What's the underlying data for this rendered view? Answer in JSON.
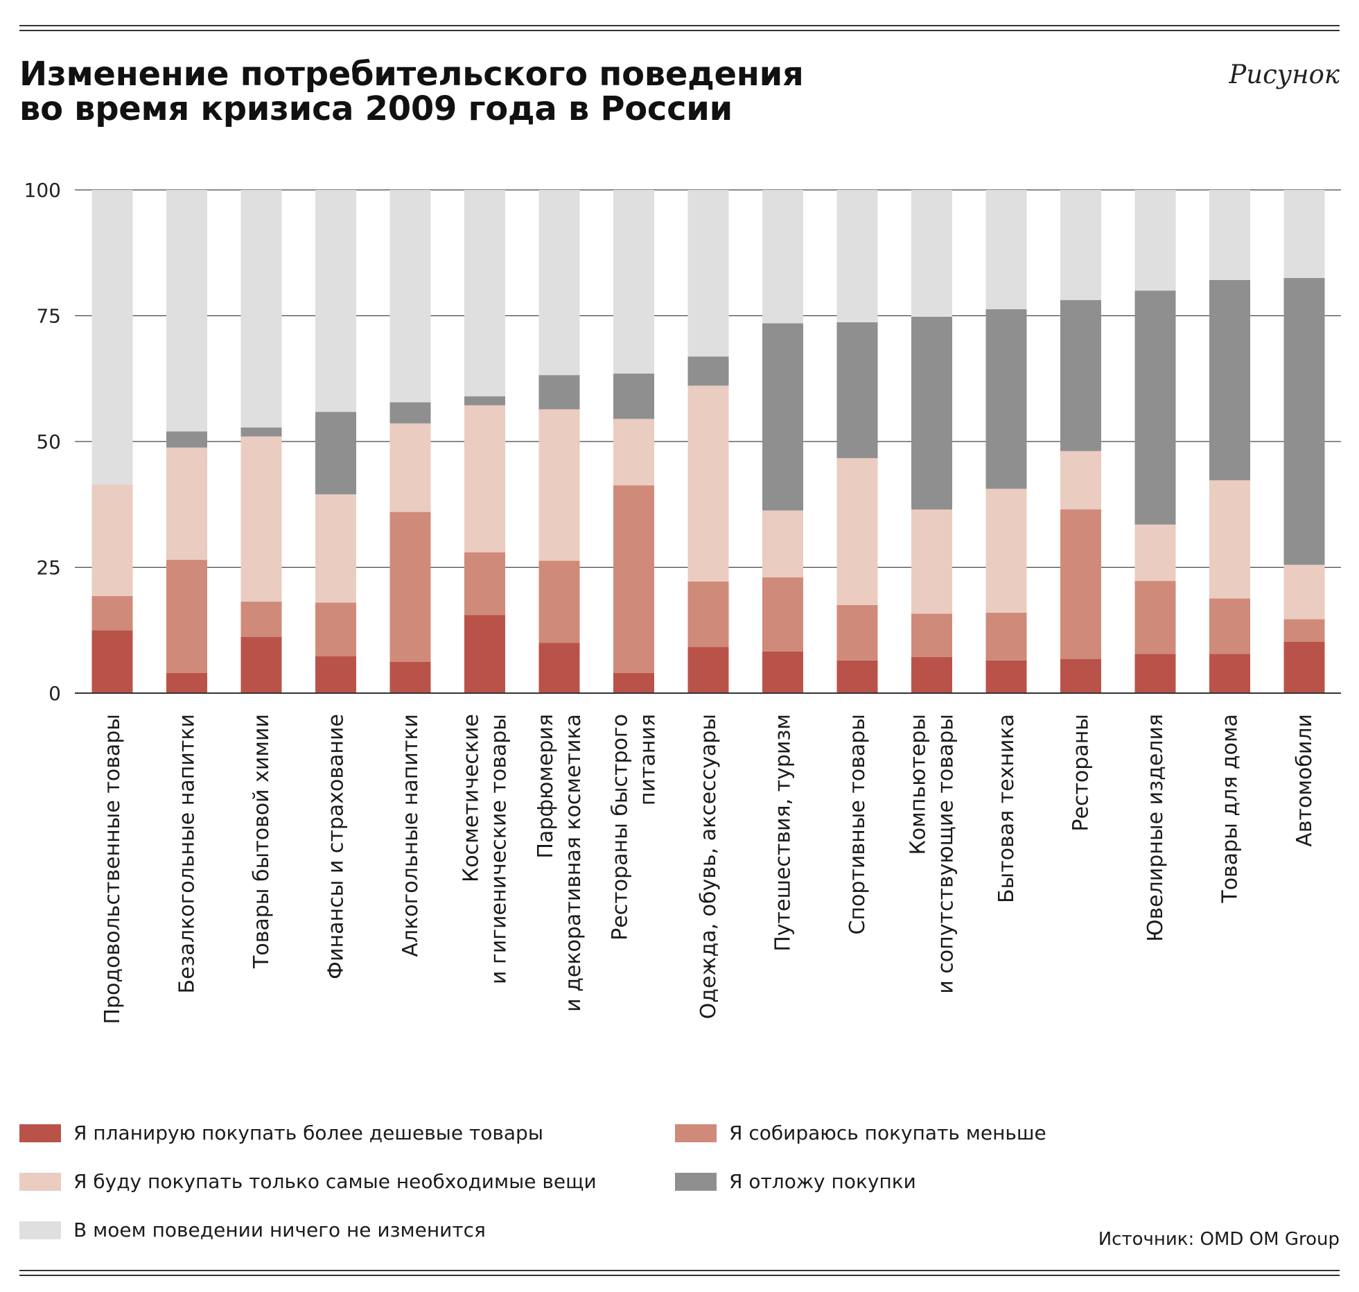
{
  "header": {
    "title_line1": "Изменение потребительского поведения",
    "title_line2": "во время кризиса 2009 года в России",
    "figure_label": "Рисунок"
  },
  "legend": [
    {
      "label": "Я планирую покупать более дешевые товары",
      "color": "#b95349"
    },
    {
      "label": "Я собираюсь покупать меньше",
      "color": "#d08a7a"
    },
    {
      "label": "Я буду покупать только самые необходимые вещи",
      "color": "#ebccc0"
    },
    {
      "label": "Я отложу покупки",
      "color": "#8f8f8f"
    },
    {
      "label": "В моем поведении ничего не изменится",
      "color": "#dfdfdf"
    }
  ],
  "source": "Источник: OMD OM Group",
  "chart_data": {
    "type": "bar",
    "stacked": true,
    "title": "Изменение потребительского поведения во время кризиса 2009 года в России",
    "xlabel": "",
    "ylabel": "",
    "ylim": [
      0,
      100
    ],
    "yticks": [
      0,
      25,
      50,
      75,
      100
    ],
    "grid": true,
    "categories": [
      [
        "Продовольственные товары"
      ],
      [
        "Безалкогольные напитки"
      ],
      [
        "Товары бытовой химии"
      ],
      [
        "Финансы и страхование"
      ],
      [
        "Алкогольные напитки"
      ],
      [
        "Косметические",
        "и гигиенические товары"
      ],
      [
        "Парфюмерия",
        "и декоративная косметика"
      ],
      [
        "Рестораны быстрого",
        "питания"
      ],
      [
        "Одежда, обувь, аксессуары"
      ],
      [
        "Путешествия, туризм"
      ],
      [
        "Спортивные товары"
      ],
      [
        "Компьютеры",
        "и сопутствующие товары"
      ],
      [
        "Бытовая техника"
      ],
      [
        "Рестораны"
      ],
      [
        "Ювелирные изделия"
      ],
      [
        "Товары для дома"
      ],
      [
        "Автомобили"
      ]
    ],
    "series": [
      {
        "name": "Я планирую покупать более дешевые товары",
        "color": "#b95349",
        "values": [
          12.5,
          4,
          11.2,
          7.3,
          6.2,
          15.5,
          10,
          4,
          9.2,
          8.3,
          6.5,
          7.2,
          6.5,
          6.8,
          7.8,
          7.8,
          10.2
        ]
      },
      {
        "name": "Я собираюсь покупать меньше",
        "color": "#d08a7a",
        "values": [
          6.8,
          22.5,
          7,
          10.7,
          29.8,
          12.5,
          16.3,
          37.3,
          13,
          14.7,
          11,
          8.6,
          9.5,
          29.7,
          14.5,
          11,
          4.5
        ]
      },
      {
        "name": "Я буду покупать только самые необходимые вещи",
        "color": "#ebccc0",
        "values": [
          22.2,
          22.3,
          32.8,
          21.5,
          17.6,
          29.2,
          30.1,
          13.2,
          38.9,
          13.3,
          29.2,
          20.7,
          24.6,
          11.6,
          11.2,
          23.5,
          10.8
        ]
      },
      {
        "name": "Я отложу покупки",
        "color": "#8f8f8f",
        "values": [
          0,
          3.2,
          1.8,
          16.4,
          4.2,
          1.8,
          6.8,
          9,
          5.8,
          37.2,
          27,
          38.3,
          35.7,
          30,
          46.5,
          39.8,
          57
        ]
      },
      {
        "name": "В моем поведении ничего не изменится",
        "color": "#dfdfdf",
        "values": [
          58.5,
          48,
          47.2,
          44.1,
          42.2,
          41,
          36.8,
          36.5,
          33.1,
          26.5,
          26.3,
          25.2,
          23.7,
          21.9,
          20,
          17.9,
          17.5
        ]
      }
    ]
  }
}
